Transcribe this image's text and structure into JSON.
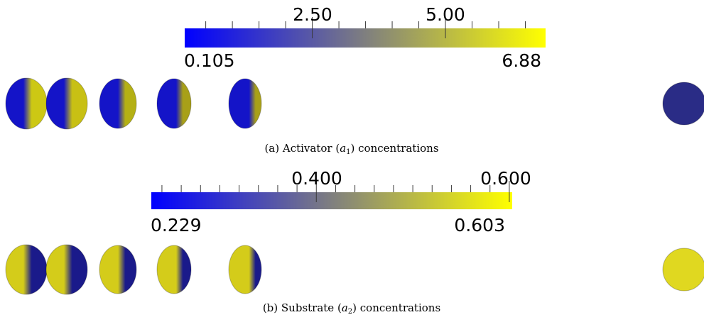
{
  "panels": [
    {
      "id": "a",
      "colorbar": {
        "min_label": "0.105",
        "max_label": "6.88",
        "tick_labels": [
          "2.50",
          "5.00"
        ],
        "range": [
          0.105,
          6.88
        ],
        "label_values": [
          2.5,
          5.0
        ],
        "minor_step": 0.5,
        "colors": [
          "#0000ff",
          "#7f7f7f",
          "#ffff00"
        ]
      },
      "caption": {
        "prefix": "(a)  Activator (",
        "var": "a",
        "sub": "1",
        "suffix": ") concentrations"
      },
      "cells": [
        {
          "name": "cell-1",
          "split": 0.55,
          "dark": "#1414c8",
          "light": "#cdc814"
        },
        {
          "name": "cell-2",
          "split": 0.55,
          "dark": "#1414c8",
          "light": "#c8c014"
        },
        {
          "name": "cell-3",
          "split": 0.62,
          "dark": "#1414c8",
          "light": "#b4b014"
        },
        {
          "name": "cell-4",
          "split": 0.68,
          "dark": "#1414c8",
          "light": "#a8a018"
        },
        {
          "name": "cell-5",
          "split": 0.74,
          "dark": "#1414c8",
          "light": "#a8a018"
        },
        {
          "name": "cell-6",
          "split": 1.0,
          "dark": "#2a2c86",
          "light": "#2a2c86"
        }
      ]
    },
    {
      "id": "b",
      "colorbar": {
        "min_label": "0.229",
        "max_label": "0.603",
        "tick_labels": [
          "0.400",
          "0.600"
        ],
        "range": [
          0.229,
          0.603
        ],
        "label_values": [
          0.4,
          0.6
        ],
        "minor_step": 0.02,
        "colors": [
          "#0000ff",
          "#7f7f7f",
          "#ffff00"
        ]
      },
      "caption": {
        "prefix": "(b)  Substrate (",
        "var": "a",
        "sub": "2",
        "suffix": ") concentrations"
      },
      "cells": [
        {
          "name": "cell-1",
          "split": 0.55,
          "dark": "#d4cc1a",
          "light": "#1a1a8a"
        },
        {
          "name": "cell-2",
          "split": 0.55,
          "dark": "#d4cc1a",
          "light": "#1a1a8a"
        },
        {
          "name": "cell-3",
          "split": 0.62,
          "dark": "#d4cc1a",
          "light": "#1a1a8a"
        },
        {
          "name": "cell-4",
          "split": 0.68,
          "dark": "#d4cc1a",
          "light": "#1a1a8a"
        },
        {
          "name": "cell-5",
          "split": 0.74,
          "dark": "#d4cc1a",
          "light": "#1a1a8a"
        },
        {
          "name": "cell-6",
          "split": 1.0,
          "dark": "#e0d820",
          "light": "#e0d820"
        }
      ]
    }
  ]
}
